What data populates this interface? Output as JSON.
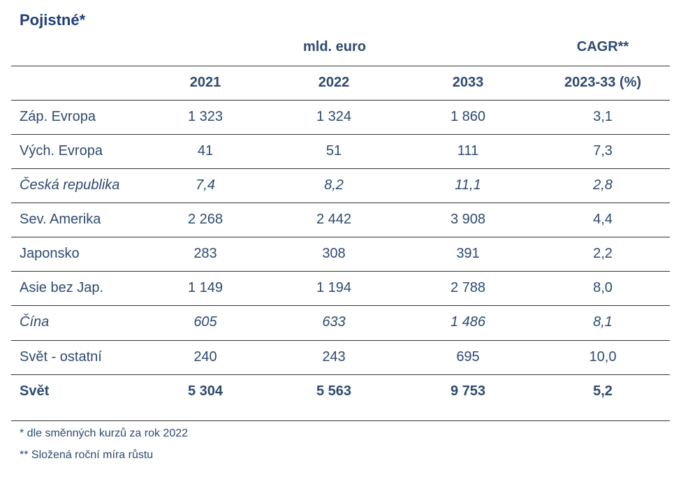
{
  "title": "Pojistné*",
  "unit_label": "mld. euro",
  "cagr_label": "CAGR**",
  "columns": {
    "label": "",
    "y2021": "2021",
    "y2022": "2022",
    "y2033": "2033",
    "cagr": "2023-33 (%)"
  },
  "rows": [
    {
      "label": "Záp. Evropa",
      "y2021": "1 323",
      "y2022": "1 324",
      "y2033": "1 860",
      "cagr": "3,1",
      "style": "normal"
    },
    {
      "label": "Vých. Evropa",
      "y2021": "41",
      "y2022": "51",
      "y2033": "111",
      "cagr": "7,3",
      "style": "normal"
    },
    {
      "label": "Česká republika",
      "y2021": "7,4",
      "y2022": "8,2",
      "y2033": "11,1",
      "cagr": "2,8",
      "style": "italic"
    },
    {
      "label": "Sev. Amerika",
      "y2021": "2 268",
      "y2022": "2 442",
      "y2033": "3 908",
      "cagr": "4,4",
      "style": "normal"
    },
    {
      "label": "Japonsko",
      "y2021": "283",
      "y2022": "308",
      "y2033": "391",
      "cagr": "2,2",
      "style": "normal"
    },
    {
      "label": "Asie bez Jap.",
      "y2021": "1 149",
      "y2022": "1 194",
      "y2033": "2 788",
      "cagr": "8,0",
      "style": "normal"
    },
    {
      "label": "Čína",
      "y2021": "605",
      "y2022": "633",
      "y2033": "1 486",
      "cagr": "8,1",
      "style": "italic"
    },
    {
      "label": "Svět - ostatní",
      "y2021": "240",
      "y2022": "243",
      "y2033": "695",
      "cagr": "10,0",
      "style": "normal"
    },
    {
      "label": "Svět",
      "y2021": "5 304",
      "y2022": "5 563",
      "y2033": "9 753",
      "cagr": "5,2",
      "style": "bold"
    }
  ],
  "footnotes": [
    "* dle směnných kurzů za rok 2022",
    "** Složená roční míra růstu"
  ],
  "colors": {
    "title": "#1f3f7a",
    "text": "#2e4a70",
    "rule": "#333333"
  }
}
